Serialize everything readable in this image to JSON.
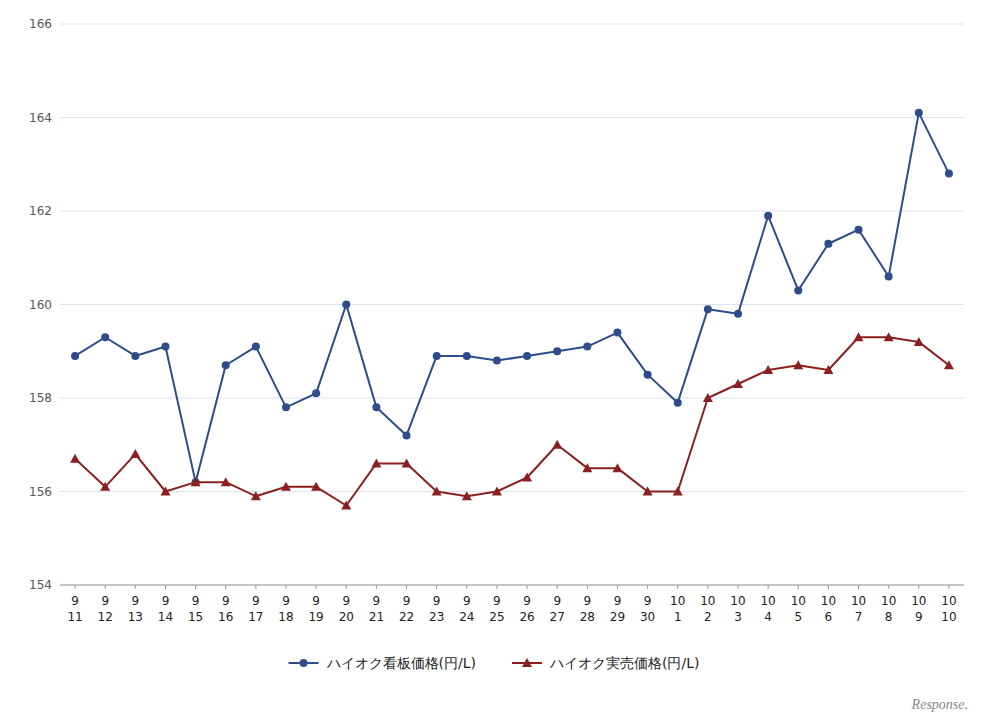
{
  "chart_data": {
    "type": "line",
    "categories": [
      "9\n11",
      "9\n12",
      "9\n13",
      "9\n14",
      "9\n15",
      "9\n16",
      "9\n17",
      "9\n18",
      "9\n19",
      "9\n20",
      "9\n21",
      "9\n22",
      "9\n23",
      "9\n24",
      "9\n25",
      "9\n26",
      "9\n27",
      "9\n28",
      "9\n29",
      "9\n30",
      "10\n1",
      "10\n2",
      "10\n3",
      "10\n4",
      "10\n5",
      "10\n6",
      "10\n7",
      "10\n8",
      "10\n9",
      "10\n10"
    ],
    "series": [
      {
        "name": "ハイオク看板価格(円/L)",
        "color": "#2E4B8A",
        "marker": "circle",
        "values": [
          158.9,
          159.3,
          158.9,
          159.1,
          156.2,
          158.7,
          159.1,
          157.8,
          158.1,
          160.0,
          157.8,
          157.2,
          158.9,
          158.9,
          158.8,
          158.9,
          159.0,
          159.1,
          159.4,
          158.5,
          157.9,
          159.9,
          159.8,
          161.9,
          160.3,
          161.3,
          161.6,
          160.6,
          164.1,
          162.8
        ]
      },
      {
        "name": "ハイオク実売価格(円/L)",
        "color": "#8B2020",
        "marker": "triangle",
        "values": [
          156.7,
          156.1,
          156.8,
          156.0,
          156.2,
          156.2,
          155.9,
          156.1,
          156.1,
          155.7,
          156.6,
          156.6,
          156.0,
          155.9,
          156.0,
          156.3,
          157.0,
          156.5,
          156.5,
          156.0,
          156.0,
          158.0,
          158.3,
          158.6,
          158.7,
          158.6,
          159.3,
          159.3,
          159.2,
          158.7
        ]
      }
    ],
    "ylim": [
      154,
      166
    ],
    "yticks": [
      154,
      156,
      158,
      160,
      162,
      164,
      166
    ],
    "grid": true,
    "legend": "bottom",
    "annotations": [
      "Response."
    ]
  }
}
